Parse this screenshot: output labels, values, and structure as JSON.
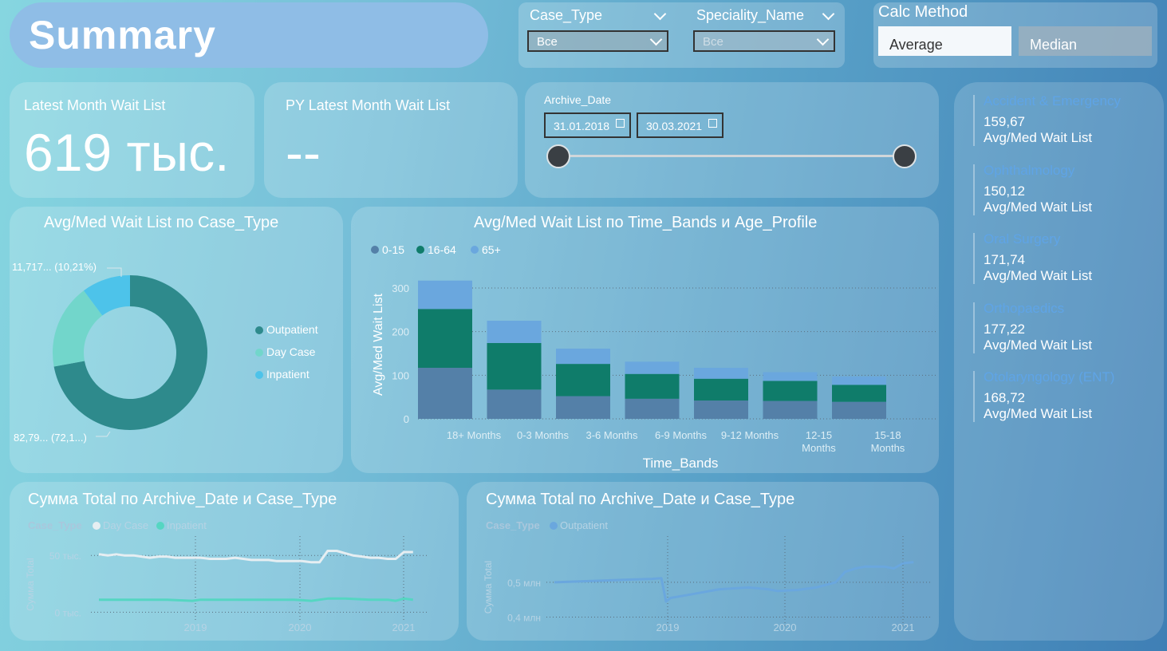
{
  "header": {
    "title": "Summary"
  },
  "slicers": {
    "case_type": {
      "label": "Case_Type",
      "value": "Все"
    },
    "speciality": {
      "label": "Speciality_Name",
      "value": "Все"
    }
  },
  "calc_method": {
    "label": "Calc Method",
    "options": [
      "Average",
      "Median"
    ],
    "selected": "Average"
  },
  "kpis": {
    "latest": {
      "label": "Latest Month Wait List",
      "value": "619 тыс."
    },
    "py_latest": {
      "label": "PY Latest Month Wait List",
      "value": "--"
    }
  },
  "archive_date": {
    "label": "Archive_Date",
    "start": "31.01.2018",
    "end": "30.03.2021"
  },
  "donut": {
    "title": "Avg/Med Wait List по Case_Type",
    "label_top": "11,717... (10,21%)",
    "label_bottom": "82,79... (72,1...)",
    "legend": [
      "Outpatient",
      "Day Case",
      "Inpatient"
    ],
    "colors": [
      "#2e8a8c",
      "#72d6cb",
      "#4dc3ea"
    ]
  },
  "chart_data": [
    {
      "type": "pie",
      "title": "Avg/Med Wait List по Case_Type",
      "categories": [
        "Outpatient",
        "Day Case",
        "Inpatient"
      ],
      "values": [
        82.79,
        20.3,
        11.717
      ],
      "percent": [
        72.1,
        17.69,
        10.21
      ],
      "colors": [
        "#2e8a8c",
        "#72d6cb",
        "#4dc3ea"
      ],
      "legend_position": "right"
    },
    {
      "type": "bar",
      "stacked": true,
      "title": "Avg/Med Wait List по Time_Bands и Age_Profile",
      "xlabel": "Time_Bands",
      "ylabel": "Avg/Med Wait List",
      "categories": [
        "18+ Months",
        "0-3 Months",
        "3-6 Months",
        "6-9 Months",
        "9-12 Months",
        "12-15 Months",
        "15-18 Months"
      ],
      "category_lines": [
        [
          "18+ Months"
        ],
        [
          "0-3 Months"
        ],
        [
          "3-6 Months"
        ],
        [
          "6-9 Months"
        ],
        [
          "9-12 Months"
        ],
        [
          "12-15",
          "Months"
        ],
        [
          "15-18",
          "Months"
        ]
      ],
      "series": [
        {
          "name": "0-15",
          "color": "#5480a8",
          "values": [
            117,
            67,
            52,
            46,
            42,
            41,
            39
          ]
        },
        {
          "name": "16-64",
          "color": "#0f7c6a",
          "values": [
            135,
            107,
            74,
            57,
            50,
            46,
            39
          ]
        },
        {
          "name": "65+",
          "color": "#6aa7de",
          "values": [
            65,
            51,
            35,
            28,
            25,
            20,
            19
          ]
        }
      ],
      "yticks": [
        0,
        100,
        200,
        300
      ],
      "ylim": [
        0,
        320
      ],
      "legend_position": "top-left"
    },
    {
      "type": "line",
      "title": "Сумма Total по Archive_Date и Case_Type",
      "legend_title": "Case_Type",
      "ylabel": "Сумма Total",
      "ytick_labels": [
        "50 тыс.",
        "0 тыс."
      ],
      "yticks": [
        50,
        0
      ],
      "ylim": [
        -4,
        60
      ],
      "xlim": [
        2018.08,
        2021.25
      ],
      "xticks": [
        "2019",
        "2020",
        "2021"
      ],
      "series": [
        {
          "name": "Day Case",
          "color": "#e6eef2",
          "x": [
            2018.08,
            2018.17,
            2018.25,
            2018.33,
            2018.42,
            2018.5,
            2018.58,
            2018.67,
            2018.75,
            2018.83,
            2018.92,
            2019.0,
            2019.08,
            2019.17,
            2019.25,
            2019.33,
            2019.42,
            2019.5,
            2019.58,
            2019.67,
            2019.75,
            2019.83,
            2019.92,
            2020.0,
            2020.08,
            2020.17,
            2020.25,
            2020.33,
            2020.42,
            2020.5,
            2020.58,
            2020.67,
            2020.75,
            2020.83,
            2020.92,
            2021.0,
            2021.08,
            2021.17
          ],
          "y": [
            51,
            50,
            51,
            50,
            50,
            49,
            48,
            49,
            49,
            48,
            48,
            48,
            48,
            47,
            47,
            47,
            48,
            47,
            46,
            46,
            46,
            45,
            45,
            45,
            45,
            44,
            44,
            54,
            54,
            52,
            50,
            49,
            48,
            48,
            47,
            47,
            53,
            53
          ]
        },
        {
          "name": "Inpatient",
          "color": "#55d6c2",
          "x": [
            2018.08,
            2018.25,
            2018.5,
            2018.75,
            2019.0,
            2019.08,
            2019.25,
            2019.5,
            2019.75,
            2020.0,
            2020.17,
            2020.25,
            2020.33,
            2020.5,
            2020.75,
            2020.92,
            2021.0,
            2021.08,
            2021.17
          ],
          "y": [
            11,
            11,
            11,
            11,
            10,
            11,
            11,
            11,
            11,
            11,
            10,
            11,
            12,
            12,
            11,
            11,
            10,
            12,
            11
          ]
        }
      ]
    },
    {
      "type": "line",
      "title": "Сумма Total по Archive_Date и Case_Type",
      "legend_title": "Case_Type",
      "ylabel": "Сумма Total",
      "ytick_labels": [
        "0,5 млн",
        "0,4 млн"
      ],
      "yticks": [
        0.5,
        0.4
      ],
      "ylim": [
        0.385,
        0.61
      ],
      "xlim": [
        2018.08,
        2021.25
      ],
      "xticks": [
        "2019",
        "2020",
        "2021"
      ],
      "series": [
        {
          "name": "Outpatient",
          "color": "#6aa7de",
          "x": [
            2018.08,
            2018.25,
            2018.5,
            2018.75,
            2018.92,
            2019.0,
            2019.04,
            2019.08,
            2019.25,
            2019.5,
            2019.75,
            2019.92,
            2020.0,
            2020.17,
            2020.33,
            2020.5,
            2020.58,
            2020.67,
            2020.75,
            2020.92,
            2021.0,
            2021.08,
            2021.17
          ],
          "y": [
            0.5,
            0.502,
            0.505,
            0.508,
            0.51,
            0.512,
            0.445,
            0.455,
            0.465,
            0.48,
            0.485,
            0.48,
            0.475,
            0.478,
            0.485,
            0.5,
            0.53,
            0.54,
            0.545,
            0.545,
            0.54,
            0.555,
            0.558
          ]
        }
      ]
    }
  ],
  "specialities": [
    {
      "name": "Accident & Emergency",
      "value": "159,67",
      "sub": "Avg/Med Wait List"
    },
    {
      "name": "Ophthalmology",
      "value": "150,12",
      "sub": "Avg/Med Wait List"
    },
    {
      "name": "Oral Surgery",
      "value": "171,74",
      "sub": "Avg/Med Wait List"
    },
    {
      "name": "Orthopaedics",
      "value": "177,22",
      "sub": "Avg/Med Wait List"
    },
    {
      "name": "Otolaryngology (ENT)",
      "value": "168,72",
      "sub": "Avg/Med Wait List"
    }
  ]
}
